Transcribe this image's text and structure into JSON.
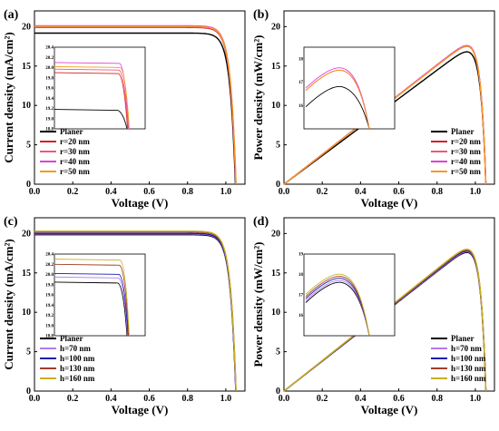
{
  "figure": {
    "panels": [
      {
        "label": "(a)",
        "xlabel": "Voltage (V)",
        "ylabel": "Current density (mA/cm²)"
      },
      {
        "label": "(b)",
        "xlabel": "Voltage (V)",
        "ylabel": "Power density (mW/cm²)"
      },
      {
        "label": "(c)",
        "xlabel": "Voltage (V)",
        "ylabel": "Current density (mA/cm²)"
      },
      {
        "label": "(d)",
        "xlabel": "Voltage (V)",
        "ylabel": "Power density (mW/cm²)"
      }
    ]
  },
  "colors": {
    "planer": "#000000",
    "r20": "#d61f26",
    "r30": "#f0587a",
    "r40": "#e040d8",
    "r50": "#f59b1f",
    "h70": "#b478f0",
    "h100": "#1a1ab0",
    "h130": "#a0402a",
    "h160": "#c8b020"
  },
  "chart_data": [
    {
      "type": "line",
      "panel": "a",
      "xlabel": "Voltage (V)",
      "ylabel": "Current density (mA/cm²)",
      "xlim": [
        0,
        1.1
      ],
      "ylim": [
        0,
        22
      ],
      "xticks": [
        "0.0",
        "0.2",
        "0.4",
        "0.6",
        "0.8",
        "1.0"
      ],
      "yticks": [
        "0",
        "5",
        "10",
        "15",
        "20"
      ],
      "legend_position": "lower-left",
      "series": [
        {
          "name": "Planer",
          "jsc": 19.18,
          "voc": 1.05,
          "color": "#000000"
        },
        {
          "name": "r=20 nm",
          "jsc": 19.9,
          "voc": 1.052,
          "color": "#d61f26"
        },
        {
          "name": "r=30 nm",
          "jsc": 19.97,
          "voc": 1.052,
          "color": "#f0587a"
        },
        {
          "name": "r=40 nm",
          "jsc": 20.1,
          "voc": 1.053,
          "color": "#e040d8"
        },
        {
          "name": "r=50 nm",
          "jsc": 20.02,
          "voc": 1.053,
          "color": "#f59b1f"
        }
      ],
      "inset": {
        "xlim": [
          0,
          0.6
        ],
        "ylim": [
          18.8,
          20.4
        ],
        "yticks": [
          "18.8",
          "19.0",
          "19.2",
          "19.4",
          "19.6",
          "19.8",
          "20.0",
          "20.2",
          "20.4"
        ]
      }
    },
    {
      "type": "line",
      "panel": "b",
      "xlabel": "Voltage (V)",
      "ylabel": "Power density (mW/cm²)",
      "xlim": [
        0,
        1.1
      ],
      "ylim": [
        0,
        22
      ],
      "xticks": [
        "0.0",
        "0.2",
        "0.4",
        "0.6",
        "0.8",
        "1.0"
      ],
      "yticks": [
        "0",
        "5",
        "10",
        "15",
        "20"
      ],
      "legend_position": "lower-right",
      "series": [
        {
          "name": "Planer",
          "pmax": 16.8,
          "color": "#000000"
        },
        {
          "name": "r=20 nm",
          "pmax": 17.5,
          "color": "#d61f26"
        },
        {
          "name": "r=30 nm",
          "pmax": 17.5,
          "color": "#f0587a"
        },
        {
          "name": "r=40 nm",
          "pmax": 17.6,
          "color": "#e040d8"
        },
        {
          "name": "r=50 nm",
          "pmax": 17.5,
          "color": "#f59b1f"
        }
      ],
      "inset": {
        "xlim": [
          0.8,
          1.0
        ],
        "ylim": [
          15,
          18.5
        ],
        "yticks": [
          "16",
          "17",
          "18"
        ]
      }
    },
    {
      "type": "line",
      "panel": "c",
      "xlabel": "Voltage (V)",
      "ylabel": "Current density (mA/cm²)",
      "xlim": [
        0,
        1.1
      ],
      "ylim": [
        0,
        22
      ],
      "xticks": [
        "0.0",
        "0.2",
        "0.4",
        "0.6",
        "0.8",
        "1.0"
      ],
      "yticks": [
        "0",
        "5",
        "10",
        "15",
        "20"
      ],
      "legend_position": "lower-left",
      "series": [
        {
          "name": "Planer",
          "jsc": 19.85,
          "voc": 1.052,
          "color": "#000000"
        },
        {
          "name": "h=70 nm",
          "jsc": 19.95,
          "voc": 1.052,
          "color": "#b478f0"
        },
        {
          "name": "h=100 nm",
          "jsc": 20.02,
          "voc": 1.052,
          "color": "#1a1ab0"
        },
        {
          "name": "h=130 nm",
          "jsc": 20.2,
          "voc": 1.053,
          "color": "#a0402a"
        },
        {
          "name": "h=160 nm",
          "jsc": 20.3,
          "voc": 1.053,
          "color": "#c8b020"
        }
      ],
      "inset": {
        "xlim": [
          0,
          0.6
        ],
        "ylim": [
          18.8,
          20.4
        ],
        "yticks": [
          "18.8",
          "19.0",
          "19.2",
          "19.4",
          "19.6",
          "19.8",
          "20.0",
          "20.2",
          "20.4"
        ]
      }
    },
    {
      "type": "line",
      "panel": "d",
      "xlabel": "Voltage (V)",
      "ylabel": "Power density (mW/cm²)",
      "xlim": [
        0,
        1.1
      ],
      "ylim": [
        0,
        22
      ],
      "xticks": [
        "0.0",
        "0.2",
        "0.4",
        "0.6",
        "0.8",
        "1.0"
      ],
      "yticks": [
        "0",
        "5",
        "10",
        "15",
        "20"
      ],
      "legend_position": "lower-right",
      "series": [
        {
          "name": "Planer",
          "pmax": 17.6,
          "color": "#000000"
        },
        {
          "name": "h=70 nm",
          "pmax": 17.7,
          "color": "#b478f0"
        },
        {
          "name": "h=100 nm",
          "pmax": 17.8,
          "color": "#1a1ab0"
        },
        {
          "name": "h=130 nm",
          "pmax": 17.9,
          "color": "#a0402a"
        },
        {
          "name": "h=160 nm",
          "pmax": 18.0,
          "color": "#c8b020"
        }
      ],
      "inset": {
        "xlim": [
          0.8,
          1.0
        ],
        "ylim": [
          15,
          19
        ],
        "yticks": [
          "16",
          "17",
          "18",
          "19"
        ]
      }
    }
  ]
}
